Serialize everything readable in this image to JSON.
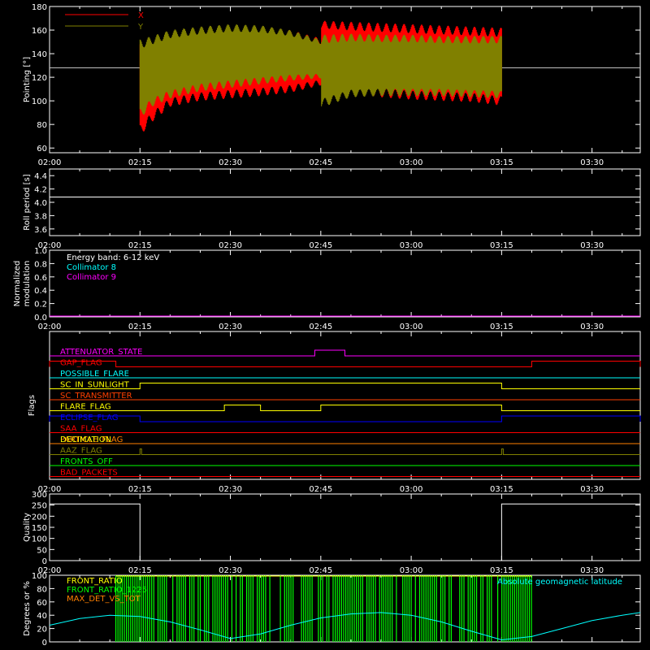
{
  "chart_data": [
    {
      "panel": "pointing",
      "type": "area",
      "ylabel": "Pointing [°]",
      "xtick_labels": [
        "02:00",
        "02:15",
        "02:30",
        "02:45",
        "03:00",
        "03:15",
        "03:30"
      ],
      "ylim": [
        56,
        180
      ],
      "yticks": [
        60,
        80,
        100,
        120,
        140,
        160,
        180
      ],
      "reference_line": 128,
      "legend": [
        "X",
        "Y"
      ],
      "colors": {
        "X": "#ff0000",
        "Y": "#808000",
        "reference": "#c0c0c0"
      },
      "series": [
        {
          "name": "X",
          "x": [
            "02:15",
            "02:17",
            "02:20",
            "02:25",
            "02:30",
            "02:35",
            "02:40",
            "02:45",
            "02:45",
            "02:50",
            "02:55",
            "03:00",
            "03:05",
            "03:10",
            "03:15"
          ],
          "lower": [
            70,
            82,
            95,
            100,
            102,
            104,
            107,
            113,
            113,
            106,
            103,
            101,
            100,
            99,
            96
          ],
          "upper": [
            148,
            152,
            157,
            160,
            162,
            162,
            160,
            153,
            168,
            167,
            166,
            165,
            164,
            163,
            162
          ]
        },
        {
          "name": "Y",
          "x": [
            "02:15",
            "02:17",
            "02:20",
            "02:25",
            "02:30",
            "02:35",
            "02:40",
            "02:45",
            "02:45",
            "02:50",
            "02:55",
            "03:00",
            "03:05",
            "03:10",
            "03:15"
          ],
          "lower": [
            85,
            95,
            102,
            108,
            111,
            114,
            117,
            119,
            94,
            103,
            104,
            104,
            104,
            103,
            102
          ],
          "upper": [
            152,
            155,
            160,
            163,
            165,
            164,
            160,
            152,
            156,
            157,
            156,
            156,
            155,
            155,
            155
          ]
        }
      ]
    },
    {
      "panel": "roll_period",
      "type": "line",
      "ylabel": "Roll period [s]",
      "xtick_labels": [
        "02:00",
        "02:15",
        "02:30",
        "02:45",
        "03:00",
        "03:15",
        "03:30"
      ],
      "ylim": [
        3.5,
        4.5
      ],
      "yticks": [
        3.6,
        3.8,
        4.0,
        4.2,
        4.4
      ],
      "series": [
        {
          "x": [
            "02:00",
            "03:38"
          ],
          "values": [
            4.08,
            4.08
          ]
        }
      ]
    },
    {
      "panel": "modulation",
      "type": "line",
      "ylabel": "Normalized modulation",
      "xtick_labels": [
        "02:00",
        "02:15",
        "02:30",
        "02:45",
        "03:00",
        "03:15",
        "03:30"
      ],
      "ylim": [
        0,
        1
      ],
      "yticks": [
        0.0,
        0.2,
        0.4,
        0.6,
        0.8,
        1.0
      ],
      "annotations": [
        "Energy band: 6-12 keV",
        "Collimator 8",
        "Collimator 9"
      ],
      "colors": {
        "Collimator 8": "#00ffff",
        "Collimator 9": "#ff00ff"
      },
      "series": [
        {
          "name": "Collimator 9",
          "x": [
            "02:00",
            "03:38"
          ],
          "values": [
            0,
            0
          ]
        }
      ]
    },
    {
      "panel": "flags",
      "type": "line",
      "ylabel": "Flags",
      "xtick_labels": [
        "02:00",
        "02:15",
        "02:30",
        "02:45",
        "03:00",
        "03:15",
        "03:30"
      ],
      "flags": [
        {
          "name": "ATTENUATOR_STATE",
          "color": "#ff00ff",
          "high": [
            [
              "02:44",
              "02:49"
            ]
          ]
        },
        {
          "name": "GAP_FLAG",
          "color": "#ff0000",
          "high": [
            [
              "02:00",
              "02:11"
            ],
            [
              "03:20",
              "03:38"
            ]
          ]
        },
        {
          "name": "POSSIBLE_FLARE",
          "color": "#00ffff",
          "high": []
        },
        {
          "name": "SC_IN_SUNLIGHT",
          "color": "#ffff00",
          "high": [
            [
              "02:15",
              "03:15"
            ]
          ]
        },
        {
          "name": "SC_TRANSMITTER",
          "color": "#ff4000",
          "high": []
        },
        {
          "name": "FLARE_FLAG",
          "color": "#ffff00",
          "high": [
            [
              "02:29",
              "02:35"
            ],
            [
              "02:45",
              "03:15"
            ]
          ]
        },
        {
          "name": "ECLIPSE_FLAG",
          "color": "#0000ff",
          "high": [
            [
              "02:00",
              "02:15"
            ],
            [
              "03:15",
              "03:38"
            ]
          ]
        },
        {
          "name": "SAA_FLAG",
          "color": "#ff0000",
          "high": []
        },
        {
          "name": "PARTICLE_FLAG",
          "color": "#ff8000",
          "high": [],
          "label_overlap": "DECIMATION"
        },
        {
          "name": "AAZ_FLAG",
          "color": "#808000",
          "high": [
            [
              "02:15",
              "02:15"
            ],
            [
              "03:15",
              "03:15"
            ]
          ]
        },
        {
          "name": "FRONTS_OFF",
          "color": "#00ff00",
          "high": []
        },
        {
          "name": "BAD_PACKETS",
          "color": "#ff0000",
          "high": []
        }
      ]
    },
    {
      "panel": "quality",
      "type": "line",
      "ylabel": "Quality",
      "xtick_labels": [
        "02:00",
        "02:15",
        "02:30",
        "02:45",
        "03:00",
        "03:15",
        "03:30"
      ],
      "ylim": [
        0,
        300
      ],
      "yticks": [
        0,
        50,
        100,
        150,
        200,
        250,
        300
      ],
      "series": [
        {
          "x": [
            "02:00",
            "02:15",
            "02:15",
            "03:15",
            "03:15",
            "03:38"
          ],
          "values": [
            255,
            255,
            0,
            0,
            255,
            255
          ]
        }
      ]
    },
    {
      "panel": "ratios",
      "type": "line",
      "ylabel": "Degrees or %",
      "ylim": [
        0,
        100
      ],
      "yticks": [
        0,
        20,
        40,
        60,
        80,
        100
      ],
      "legend": [
        "FRONT_RATIO",
        "FRONT_RATIO_1225",
        "MAX_DET_VS_TOT",
        "Absolute geomagnetic latitude"
      ],
      "colors": {
        "FRONT_RATIO": "#ffff00",
        "FRONT_RATIO_1225": "#00ff00",
        "MAX_DET_VS_TOT": "#ff8000",
        "Absolute geomagnetic latitude": "#00ffff"
      },
      "series": [
        {
          "name": "Absolute geomagnetic latitude",
          "x": [
            "02:00",
            "02:05",
            "02:10",
            "02:15",
            "02:20",
            "02:25",
            "02:30",
            "02:35",
            "02:40",
            "02:45",
            "02:50",
            "02:55",
            "03:00",
            "03:05",
            "03:10",
            "03:15",
            "03:20",
            "03:25",
            "03:30",
            "03:35",
            "03:38"
          ],
          "values": [
            25,
            35,
            40,
            38,
            30,
            18,
            5,
            12,
            25,
            36,
            42,
            44,
            40,
            30,
            16,
            3,
            8,
            20,
            32,
            40,
            44
          ]
        }
      ]
    }
  ]
}
